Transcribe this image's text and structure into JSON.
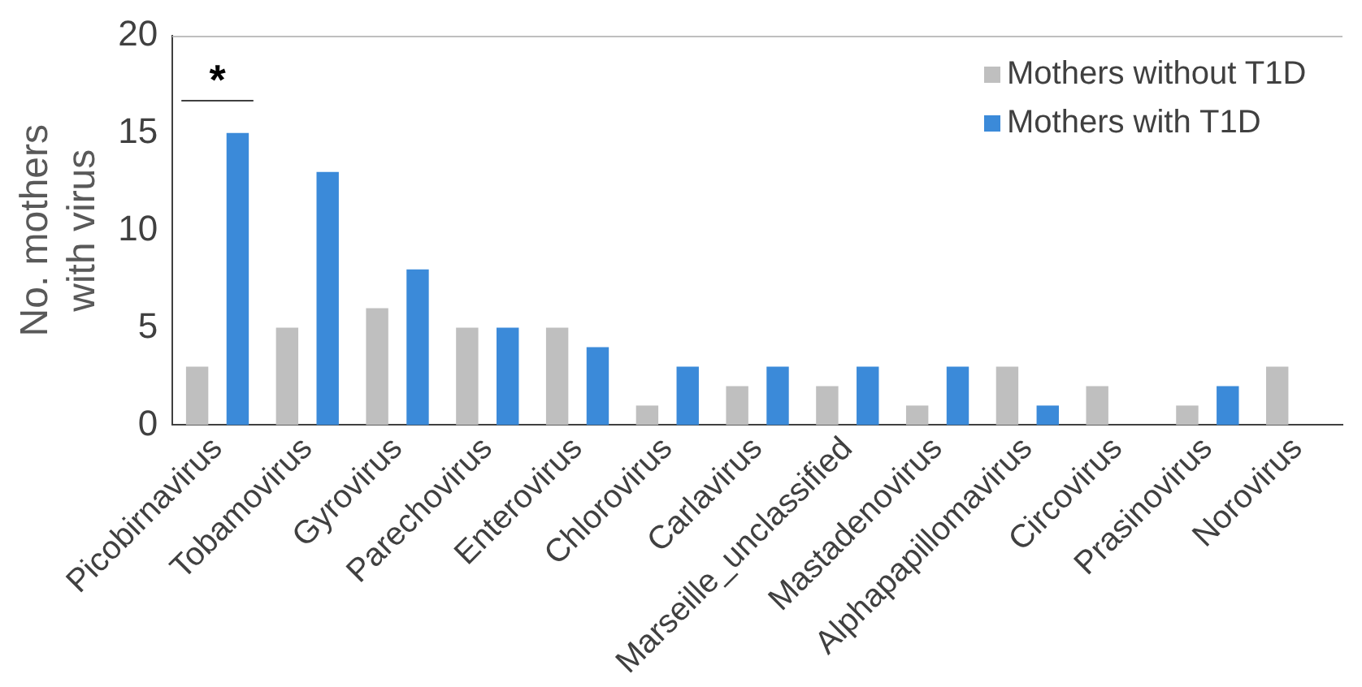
{
  "chart_data": {
    "type": "bar",
    "ylabel": "No. mothers with virus",
    "categories": [
      "Picobirnavirus",
      "Tobamovirus",
      "Gyrovirus",
      "Parechovirus",
      "Enterovirus",
      "Chlorovirus",
      "Carlavirus",
      "Marseille_unclassified",
      "Mastadenovirus",
      "Alphapapillomavirus",
      "Circovirus",
      "Prasinovirus",
      "Norovirus"
    ],
    "series": [
      {
        "name": "Mothers without T1D",
        "color": "#bfbfbf",
        "values": [
          3,
          5,
          6,
          5,
          5,
          1,
          2,
          2,
          1,
          3,
          2,
          1,
          3
        ]
      },
      {
        "name": "Mothers with T1D",
        "color": "#3b8ad9",
        "values": [
          15,
          13,
          8,
          5,
          4,
          3,
          3,
          3,
          3,
          1,
          0,
          2,
          0
        ]
      }
    ],
    "ylim": [
      0,
      20
    ],
    "yticks": [
      0,
      5,
      10,
      15,
      20
    ],
    "grid": false,
    "legend": "top right",
    "annotations": [
      "*"
    ]
  }
}
